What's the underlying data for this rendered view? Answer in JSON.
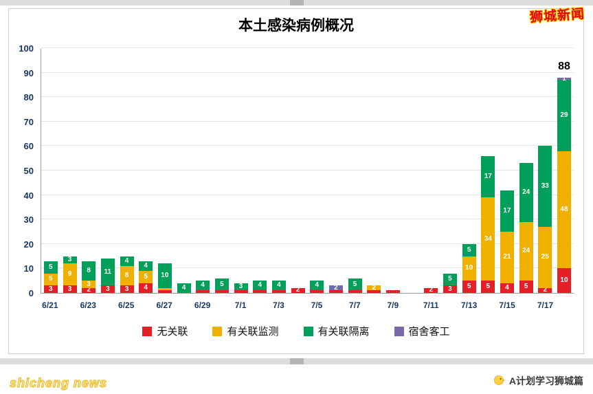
{
  "header": {
    "brand": "狮城新闻"
  },
  "chart_data": {
    "type": "bar",
    "stacked": true,
    "title": "本土感染病例概况",
    "categories": [
      "6/21",
      "6/22",
      "6/23",
      "6/24",
      "6/25",
      "6/26",
      "6/27",
      "6/28",
      "6/29",
      "6/30",
      "7/1",
      "7/2",
      "7/3",
      "7/4",
      "7/5",
      "7/6",
      "7/7",
      "7/8",
      "7/9",
      "7/10",
      "7/11",
      "7/12",
      "7/13",
      "7/14",
      "7/15",
      "7/16",
      "7/17",
      "7/18"
    ],
    "x_tick_every": 2,
    "series": [
      {
        "name": "无关联",
        "color": "#e32027",
        "values": [
          3,
          3,
          2,
          3,
          3,
          4,
          1,
          0,
          1,
          1,
          1,
          1,
          1,
          2,
          1,
          1,
          1,
          1,
          1,
          0,
          2,
          3,
          5,
          5,
          4,
          5,
          2,
          10
        ]
      },
      {
        "name": "有关联监测",
        "color": "#f0b000",
        "values": [
          5,
          9,
          3,
          0,
          8,
          5,
          1,
          0,
          0,
          0,
          0,
          0,
          0,
          0,
          0,
          0,
          0,
          2,
          0,
          0,
          0,
          0,
          10,
          34,
          21,
          24,
          25,
          48
        ]
      },
      {
        "name": "有关联隔离",
        "color": "#00a05a",
        "values": [
          5,
          3,
          8,
          11,
          4,
          4,
          10,
          4,
          4,
          5,
          3,
          4,
          4,
          0,
          4,
          0,
          5,
          0,
          0,
          0,
          0,
          5,
          5,
          17,
          17,
          24,
          33,
          29
        ]
      },
      {
        "name": "宿舍客工",
        "color": "#7a68ad",
        "values": [
          0,
          0,
          0,
          0,
          0,
          0,
          0,
          0,
          0,
          0,
          0,
          0,
          0,
          0,
          0,
          2,
          0,
          0,
          0,
          0,
          0,
          0,
          0,
          0,
          0,
          0,
          0,
          1
        ]
      }
    ],
    "ylim": [
      0,
      100
    ],
    "ytick_step": 10,
    "grid": true,
    "legend_position": "bottom",
    "annotation": {
      "text": "88",
      "bar": "7/18"
    }
  },
  "footer": {
    "watermark": "shicheng news",
    "credit": "A计划学习狮城篇"
  }
}
